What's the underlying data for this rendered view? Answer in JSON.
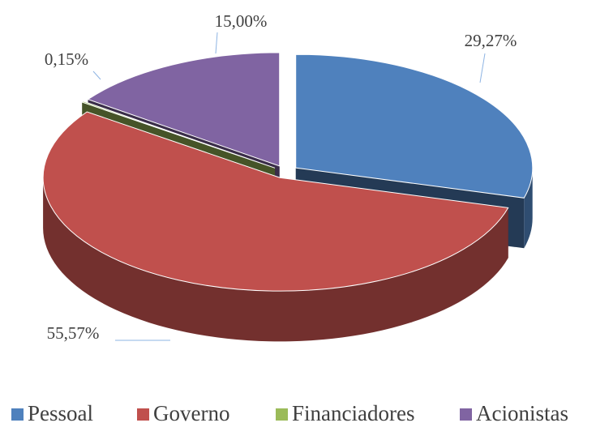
{
  "chart_data": {
    "type": "pie3d",
    "categories": [
      "Pessoal",
      "Governo",
      "Financiadores",
      "Acionistas"
    ],
    "values": [
      29.27,
      55.57,
      0.15,
      15.0
    ],
    "value_labels": [
      "29,27%",
      "55,57%",
      "0,15%",
      "15,00%"
    ],
    "colors": [
      "#4f81bd",
      "#c0504d",
      "#9bbb59",
      "#8064a2"
    ],
    "legend": "bottom"
  }
}
